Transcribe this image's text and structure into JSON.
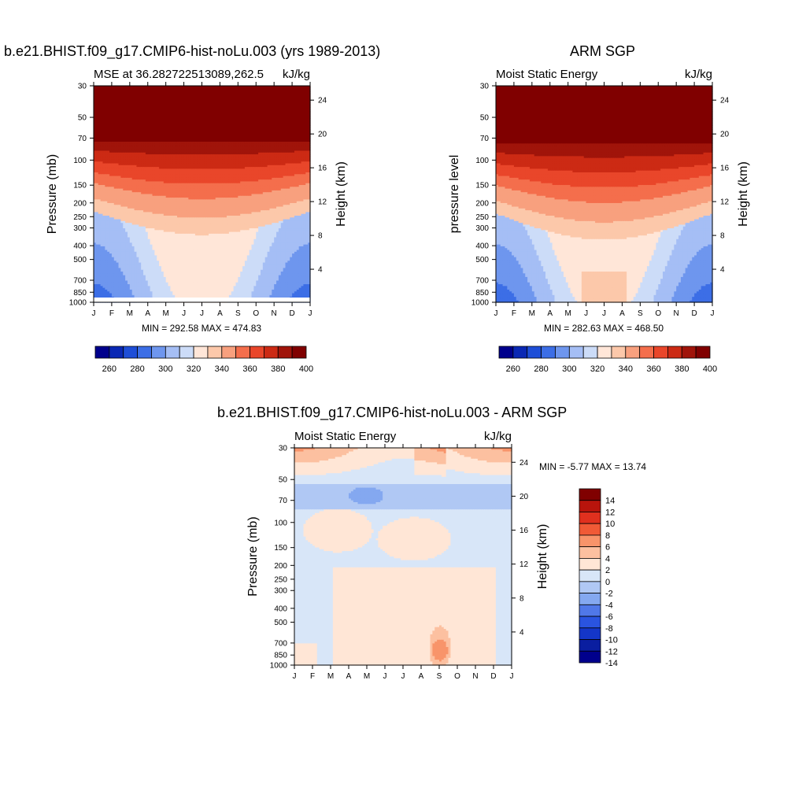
{
  "panels": {
    "p1": {
      "title": "b.e21.BHIST.f09_g17.CMIP6-hist-noLu.003 (yrs 1989-2013)",
      "left_label": "MSE at 36.282722513089,262.5",
      "right_label": "kJ/kg",
      "ylabel": "Pressure (mb)",
      "ylabel_right": "Height (km)",
      "minmax": "MIN = 292.58 MAX = 474.83"
    },
    "p2": {
      "title": "ARM SGP",
      "left_label": "Moist Static Energy",
      "right_label": "kJ/kg",
      "ylabel": "pressure level",
      "ylabel_right": "Height (km)",
      "minmax": "MIN = 282.63 MAX = 468.50"
    },
    "p3": {
      "title": "b.e21.BHIST.f09_g17.CMIP6-hist-noLu.003 - ARM SGP",
      "left_label": "Moist Static Energy",
      "right_label": "kJ/kg",
      "ylabel": "Pressure (mb)",
      "ylabel_right": "Height (km)",
      "minmax": "MIN =  -5.77 MAX =  13.74"
    }
  },
  "chart_data": [
    {
      "type": "heatmap",
      "name_ref": "p1",
      "x_tick_labels": [
        "J",
        "F",
        "M",
        "A",
        "M",
        "J",
        "J",
        "A",
        "S",
        "O",
        "N",
        "D",
        "J"
      ],
      "pressure_ticks": [
        30,
        50,
        70,
        100,
        150,
        200,
        250,
        300,
        400,
        500,
        700,
        850,
        1000
      ],
      "height_ticks": [
        4,
        8,
        12,
        16,
        20,
        24
      ],
      "colorbar_labels": [
        "260",
        "280",
        "300",
        "320",
        "340",
        "360",
        "380",
        "400"
      ],
      "colors": [
        "#00008c",
        "#0a28b4",
        "#1e4ed7",
        "#3c6ee6",
        "#6e96ee",
        "#a5bef5",
        "#ccdcf8",
        "#ffe6d8",
        "#fcc8aa",
        "#f8a07e",
        "#f46e4c",
        "#e9462a",
        "#cc2a14",
        "#a0140a",
        "#800000"
      ]
    },
    {
      "type": "heatmap",
      "name_ref": "p2",
      "x_tick_labels": [
        "J",
        "F",
        "M",
        "A",
        "M",
        "J",
        "J",
        "A",
        "S",
        "O",
        "N",
        "D",
        "J"
      ],
      "pressure_ticks": [
        30,
        50,
        70,
        100,
        150,
        200,
        250,
        300,
        400,
        500,
        700,
        850,
        1000
      ],
      "height_ticks": [
        4,
        8,
        12,
        16,
        20,
        24
      ],
      "colorbar_labels": [
        "260",
        "280",
        "300",
        "320",
        "340",
        "360",
        "380",
        "400"
      ],
      "colors": [
        "#00008c",
        "#0a28b4",
        "#1e4ed7",
        "#3c6ee6",
        "#6e96ee",
        "#a5bef5",
        "#ccdcf8",
        "#ffe6d8",
        "#fcc8aa",
        "#f8a07e",
        "#f46e4c",
        "#e9462a",
        "#cc2a14",
        "#a0140a",
        "#800000"
      ]
    },
    {
      "type": "heatmap",
      "name_ref": "p3",
      "x_tick_labels": [
        "J",
        "F",
        "M",
        "A",
        "M",
        "J",
        "J",
        "A",
        "S",
        "O",
        "N",
        "D",
        "J"
      ],
      "pressure_ticks": [
        30,
        50,
        70,
        100,
        150,
        200,
        250,
        300,
        400,
        500,
        700,
        850,
        1000
      ],
      "height_ticks": [
        4,
        8,
        12,
        16,
        20,
        24
      ],
      "colorbar_labels": [
        "14",
        "12",
        "10",
        "8",
        "6",
        "4",
        "2",
        "0",
        "-2",
        "-4",
        "-6",
        "-8",
        "-10",
        "-12",
        "-14"
      ],
      "colors": [
        "#800000",
        "#b8140c",
        "#e0301e",
        "#f05a36",
        "#f8946a",
        "#fcc0a0",
        "#ffe6d6",
        "#d8e6f8",
        "#b0c8f4",
        "#84a8f0",
        "#5078e8",
        "#2a54e0",
        "#1436c8",
        "#0a1ea0",
        "#00008c"
      ]
    }
  ]
}
